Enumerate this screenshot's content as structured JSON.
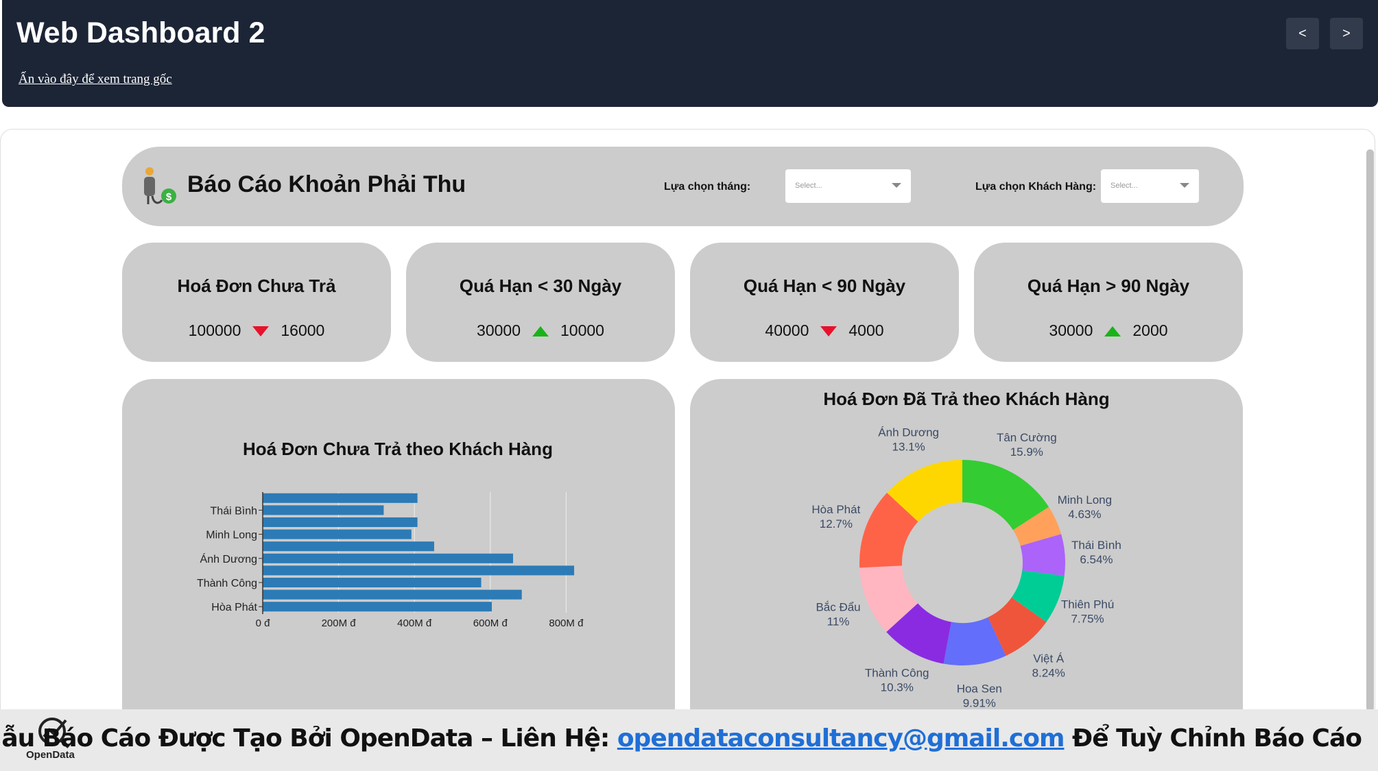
{
  "header": {
    "title": "Web Dashboard 2",
    "link": "Ấn vào đây để xem trang gốc",
    "prev": "<",
    "next": ">"
  },
  "report": {
    "title": "Báo Cáo Khoản Phải Thu",
    "filters": [
      {
        "label": "Lựa chọn tháng:",
        "placeholder": "Select..."
      },
      {
        "label": "Lựa chọn Khách Hàng:",
        "placeholder": "Select..."
      }
    ]
  },
  "kpis": [
    {
      "title": "Hoá Đơn Chưa Trả",
      "value": 100000,
      "delta": 16000,
      "direction": "down"
    },
    {
      "title": "Quá Hạn < 30 Ngày",
      "value": 30000,
      "delta": 10000,
      "direction": "up"
    },
    {
      "title": "Quá Hạn < 90 Ngày",
      "value": 40000,
      "delta": 4000,
      "direction": "down"
    },
    {
      "title": "Quá Hạn > 90 Ngày",
      "value": 30000,
      "delta": 2000,
      "direction": "up"
    }
  ],
  "chart_data": [
    {
      "type": "bar",
      "orientation": "horizontal",
      "title": "Hoá Đơn Chưa Trả theo Khách Hàng",
      "categories": [
        null,
        "Thái Bình",
        null,
        "Minh Long",
        null,
        "Ánh Dương",
        null,
        "Thành Công",
        null,
        "Hòa Phát"
      ],
      "values": [
        408000000,
        319000000,
        408000000,
        392000000,
        452000000,
        660000000,
        821000000,
        576000000,
        683000000,
        604000000
      ],
      "color": "#2c7bb6",
      "xlim": [
        0,
        830000000
      ],
      "xticks": [
        {
          "value": 0,
          "label": "0 đ"
        },
        {
          "value": 200000000,
          "label": "200M đ"
        },
        {
          "value": 400000000,
          "label": "400M đ"
        },
        {
          "value": 600000000,
          "label": "600M đ"
        },
        {
          "value": 800000000,
          "label": "800M đ"
        }
      ],
      "grid": true
    },
    {
      "type": "pie",
      "hole": true,
      "title": "Hoá Đơn Đã Trả theo Khách Hàng",
      "categories": [
        "Tân Cường",
        "Minh Long",
        "Thái Bình",
        "Thiên Phú",
        "Việt Á",
        "Hoa Sen",
        "Thành Công",
        "Bắc Đẩu",
        "Hòa Phát",
        "Ánh Dương"
      ],
      "values": [
        15.9,
        4.63,
        6.54,
        7.75,
        8.24,
        9.91,
        10.3,
        11,
        12.7,
        13.1
      ],
      "value_labels": [
        "15.9%",
        "4.63%",
        "6.54%",
        "7.75%",
        "8.24%",
        "9.91%",
        "10.3%",
        "11%",
        "12.7%",
        "13.1%"
      ],
      "colors": [
        "#33cc33",
        "#ffa15a",
        "#ab63fa",
        "#00cc96",
        "#ef553b",
        "#636efa",
        "#8a2be2",
        "#ffb6c1",
        "#ff6347",
        "#ffd700"
      ]
    }
  ],
  "footer": {
    "text": "Mẫu Báo Cáo Được Tạo Bởi OpenData – Liên Hệ: ",
    "email": "opendataconsultancy@gmail.com",
    "text_end": " Để Tuỳ Chỉnh Báo Cáo",
    "logo": "OpenData"
  }
}
